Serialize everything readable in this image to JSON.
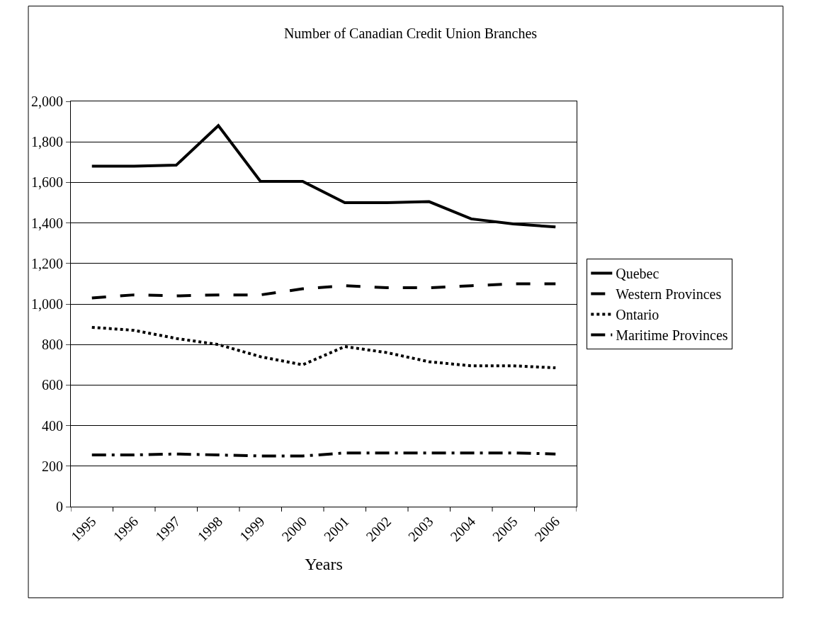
{
  "chart_data": {
    "type": "line",
    "title": "Number of Canadian Credit Union Branches",
    "xlabel": "Years",
    "categories": [
      "1995",
      "1996",
      "1997",
      "1998",
      "1999",
      "2000",
      "2001",
      "2002",
      "2003",
      "2004",
      "2005",
      "2006"
    ],
    "series": [
      {
        "name": "Quebec",
        "color": "#000000",
        "line_style": "solid",
        "values": [
          1680,
          1680,
          1685,
          1880,
          1605,
          1605,
          1500,
          1500,
          1505,
          1420,
          1395,
          1380
        ]
      },
      {
        "name": "Western Provinces",
        "color": "#000000",
        "line_style": "longdash",
        "values": [
          1030,
          1045,
          1040,
          1045,
          1045,
          1075,
          1090,
          1080,
          1080,
          1090,
          1100,
          1100
        ]
      },
      {
        "name": "Ontario",
        "color": "#000000",
        "line_style": "dotted",
        "values": [
          885,
          870,
          830,
          800,
          740,
          700,
          790,
          760,
          715,
          695,
          695,
          685
        ]
      },
      {
        "name": "Maritime Provinces",
        "color": "#000000",
        "line_style": "dashdot",
        "values": [
          255,
          255,
          260,
          255,
          250,
          250,
          265,
          265,
          265,
          265,
          265,
          260
        ]
      }
    ],
    "ylim": [
      0,
      2000
    ],
    "yticks": [
      {
        "value": 0,
        "label": "0"
      },
      {
        "value": 200,
        "label": "200"
      },
      {
        "value": 400,
        "label": "400"
      },
      {
        "value": 600,
        "label": "600"
      },
      {
        "value": 800,
        "label": "800"
      },
      {
        "value": 1000,
        "label": "1,000"
      },
      {
        "value": 1200,
        "label": "1,200"
      },
      {
        "value": 1400,
        "label": "1,400"
      },
      {
        "value": 1600,
        "label": "1,600"
      },
      {
        "value": 1800,
        "label": "1,800"
      },
      {
        "value": 2000,
        "label": "2,000"
      }
    ],
    "grid": "y",
    "legend": "right",
    "marker": "none"
  }
}
